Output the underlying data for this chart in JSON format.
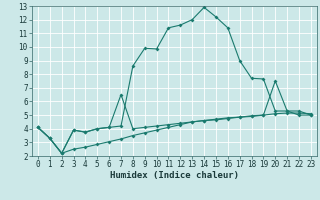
{
  "xlabel": "Humidex (Indice chaleur)",
  "bg_color": "#cce8e8",
  "line_color": "#1a7a6e",
  "grid_color": "#ffffff",
  "xlim": [
    -0.5,
    23.5
  ],
  "ylim": [
    2,
    13
  ],
  "x_ticks": [
    0,
    1,
    2,
    3,
    4,
    5,
    6,
    7,
    8,
    9,
    10,
    11,
    12,
    13,
    14,
    15,
    16,
    17,
    18,
    19,
    20,
    21,
    22,
    23
  ],
  "y_ticks": [
    2,
    3,
    4,
    5,
    6,
    7,
    8,
    9,
    10,
    11,
    12,
    13
  ],
  "line1_x": [
    0,
    1,
    2,
    3,
    4,
    5,
    6,
    7,
    8,
    9,
    10,
    11,
    12,
    13,
    14,
    15,
    16,
    17,
    18,
    19,
    20,
    21,
    22,
    23
  ],
  "line1_y": [
    4.1,
    3.3,
    2.2,
    3.9,
    3.75,
    4.0,
    4.1,
    4.2,
    8.6,
    9.9,
    9.85,
    11.4,
    11.6,
    12.0,
    12.9,
    12.2,
    11.4,
    9.0,
    7.7,
    7.65,
    5.3,
    5.3,
    5.0,
    5.0
  ],
  "line2_x": [
    0,
    1,
    2,
    3,
    4,
    5,
    6,
    7,
    8,
    9,
    10,
    11,
    12,
    13,
    14,
    15,
    16,
    17,
    18,
    19,
    20,
    21,
    22,
    23
  ],
  "line2_y": [
    4.1,
    3.3,
    2.2,
    3.9,
    3.75,
    4.0,
    4.1,
    6.5,
    4.0,
    4.1,
    4.2,
    4.3,
    4.4,
    4.5,
    4.6,
    4.65,
    4.75,
    4.85,
    4.9,
    5.0,
    7.5,
    5.3,
    5.3,
    5.0
  ],
  "line3_x": [
    0,
    1,
    2,
    3,
    4,
    5,
    6,
    7,
    8,
    9,
    10,
    11,
    12,
    13,
    14,
    15,
    16,
    17,
    18,
    19,
    20,
    21,
    22,
    23
  ],
  "line3_y": [
    4.1,
    3.3,
    2.2,
    2.5,
    2.65,
    2.85,
    3.05,
    3.25,
    3.5,
    3.7,
    3.9,
    4.1,
    4.3,
    4.5,
    4.6,
    4.7,
    4.8,
    4.85,
    4.95,
    5.0,
    5.1,
    5.15,
    5.15,
    5.1
  ]
}
